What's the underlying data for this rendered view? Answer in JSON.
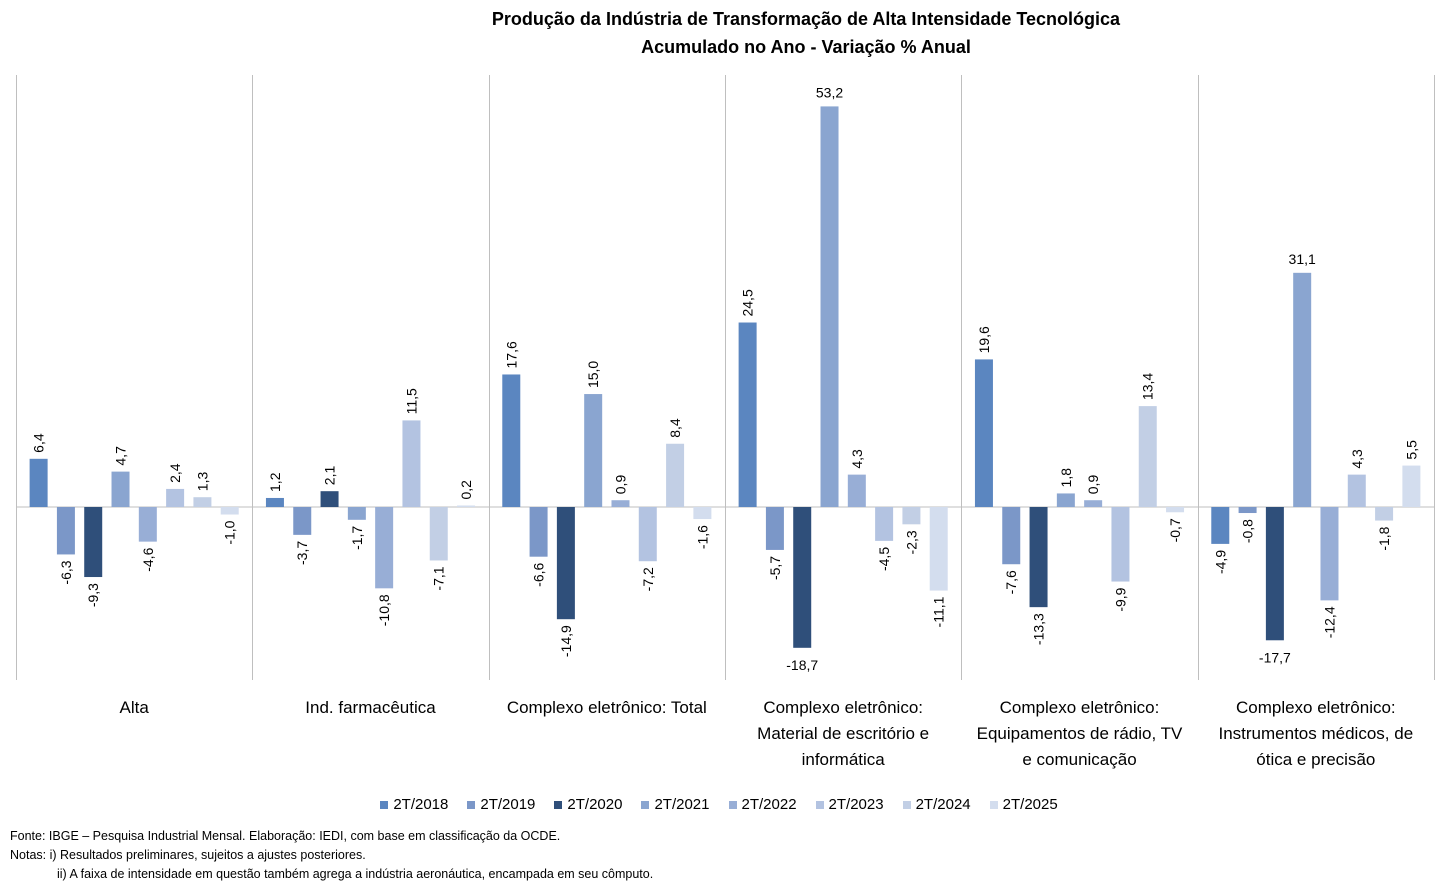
{
  "chart_data": {
    "type": "bar",
    "title": "Produção da Indústria de Transformação de Alta Intensidade Tecnológica",
    "subtitle": "Acumulado no Ano - Variação % Anual",
    "categories": [
      [
        "Alta"
      ],
      [
        "Ind. farmacêutica"
      ],
      [
        "Complexo eletrônico: Total"
      ],
      [
        "Complexo eletrônico:",
        "Material de escritório e",
        "informática"
      ],
      [
        "Complexo eletrônico:",
        "Equipamentos de rádio, TV",
        "e comunicação"
      ],
      [
        "Complexo eletrônico:",
        "Instrumentos médicos, de",
        "ótica e precisão"
      ]
    ],
    "series": [
      {
        "name": "2T/2018",
        "color": "#5b86c0",
        "values": [
          6.4,
          1.2,
          17.6,
          24.5,
          19.6,
          -4.9
        ]
      },
      {
        "name": "2T/2019",
        "color": "#7b97c8",
        "values": [
          -6.3,
          -3.7,
          -6.6,
          -5.7,
          -7.6,
          -0.8
        ]
      },
      {
        "name": "2T/2020",
        "color": "#2f4f7a",
        "values": [
          -9.3,
          2.1,
          -14.9,
          -18.7,
          -13.3,
          -17.7
        ]
      },
      {
        "name": "2T/2021",
        "color": "#8aa5d0",
        "values": [
          4.7,
          -1.7,
          15.0,
          53.2,
          1.8,
          31.1
        ]
      },
      {
        "name": "2T/2022",
        "color": "#98aed6",
        "values": [
          -4.6,
          -10.8,
          0.9,
          4.3,
          0.9,
          -12.4
        ]
      },
      {
        "name": "2T/2023",
        "color": "#b3c3e1",
        "values": [
          2.4,
          11.5,
          -7.2,
          -4.5,
          -9.9,
          4.3
        ]
      },
      {
        "name": "2T/2024",
        "color": "#c2cfe5",
        "values": [
          1.3,
          -7.1,
          8.4,
          -2.3,
          13.4,
          -1.8
        ]
      },
      {
        "name": "2T/2025",
        "color": "#d3ddee",
        "values": [
          -1.0,
          0.2,
          -1.6,
          -11.1,
          -0.7,
          5.5
        ]
      }
    ],
    "value_labels": [
      [
        "6,4",
        "-6,3",
        "-9,3",
        "4,7",
        "-4,6",
        "2,4",
        "1,3",
        "-1,0"
      ],
      [
        "1,2",
        "-3,7",
        "2,1",
        "-1,7",
        "-10,8",
        "11,5",
        "-7,1",
        "0,2"
      ],
      [
        "17,6",
        "-6,6",
        "-14,9",
        "15,0",
        "0,9",
        "-7,2",
        "8,4",
        "-1,6"
      ],
      [
        "24,5",
        "-5,7",
        "-18,7",
        "53,2",
        "4,3",
        "-4,5",
        "-2,3",
        "-11,1"
      ],
      [
        "19,6",
        "-7,6",
        "-13,3",
        "1,8",
        "0,9",
        "-9,9",
        "13,4",
        "-0,7"
      ],
      [
        "-4,9",
        "-0,8",
        "-17,7",
        "31,1",
        "-12,4",
        "4,3",
        "-1,8",
        "5,5"
      ]
    ],
    "ylim": [
      -22.5,
      57.5
    ],
    "legend_position": "bottom",
    "grid": false,
    "category_separators": true
  },
  "notes": {
    "source": "Fonte: IBGE – Pesquisa Industrial Mensal. Elaboração: IEDI, com base em classificação da OCDE.",
    "note1": "Notas: i) Resultados preliminares, sujeitos a ajustes posteriores.",
    "note2": "ii) A faixa de intensidade em questão também  agrega a indústria aeronáutica, encampada em seu cômputo."
  }
}
